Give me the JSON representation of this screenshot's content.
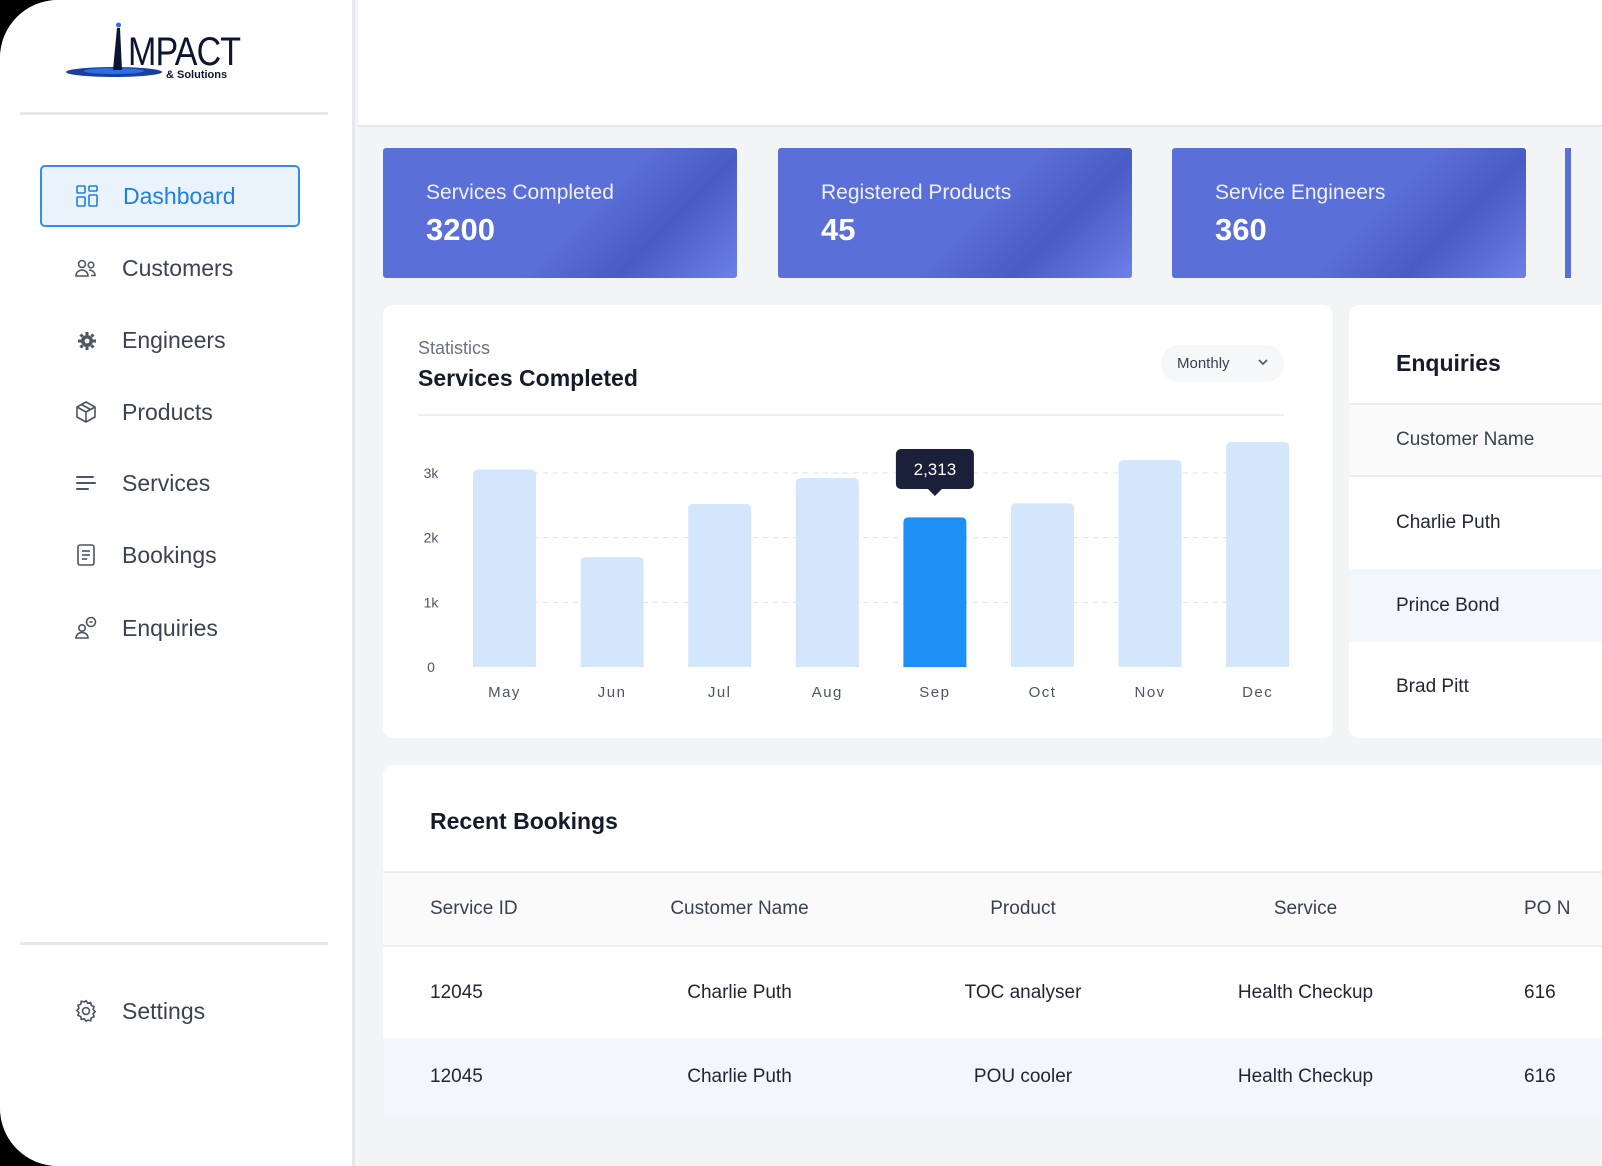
{
  "brand": {
    "name": "MPACT",
    "sub": "& Solutions"
  },
  "sidebar": {
    "items": [
      {
        "label": "Dashboard",
        "icon": "grid-icon",
        "active": true
      },
      {
        "label": "Customers",
        "icon": "users-icon"
      },
      {
        "label": "Engineers",
        "icon": "engineer-gear-icon"
      },
      {
        "label": "Products",
        "icon": "box-icon"
      },
      {
        "label": "Services",
        "icon": "lines-icon"
      },
      {
        "label": "Bookings",
        "icon": "document-icon"
      },
      {
        "label": "Enquiries",
        "icon": "enquiry-person-icon"
      }
    ],
    "settings_label": "Settings"
  },
  "stats": [
    {
      "label": "Services Completed",
      "value": "3200"
    },
    {
      "label": "Registered Products",
      "value": "45"
    },
    {
      "label": "Service Engineers",
      "value": "360"
    }
  ],
  "statistics": {
    "kicker": "Statistics",
    "title": "Services Completed",
    "period": "Monthly"
  },
  "chart_data": {
    "type": "bar",
    "categories": [
      "May",
      "Jun",
      "Jul",
      "Aug",
      "Sep",
      "Oct",
      "Nov",
      "Dec"
    ],
    "values": [
      3050,
      1700,
      2520,
      2920,
      2313,
      2530,
      3200,
      3480
    ],
    "highlight_index": 4,
    "tooltip": "2,313",
    "yticks": [
      "0",
      "1k",
      "2k",
      "3k"
    ],
    "ylim": [
      0,
      3000
    ],
    "grid": true,
    "colors": {
      "bar": "#d3e6fb",
      "highlight": "#1e8ff5",
      "tooltip": "#1a1f3a"
    }
  },
  "enquiries": {
    "title": "Enquiries",
    "header": "Customer Name",
    "rows": [
      "Charlie Puth",
      "Prince Bond",
      "Brad Pitt"
    ]
  },
  "bookings": {
    "title": "Recent Bookings",
    "headers": [
      "Service ID",
      "Customer Name",
      "Product",
      "Service",
      "PO N"
    ],
    "rows": [
      [
        "12045",
        "Charlie Puth",
        "TOC analyser",
        "Health Checkup",
        "616"
      ],
      [
        "12045",
        "Charlie Puth",
        "POU cooler",
        "Health Checkup",
        "616"
      ]
    ]
  },
  "colors": {
    "accent": "#1e7fe0",
    "card": "#5b6fd8"
  }
}
